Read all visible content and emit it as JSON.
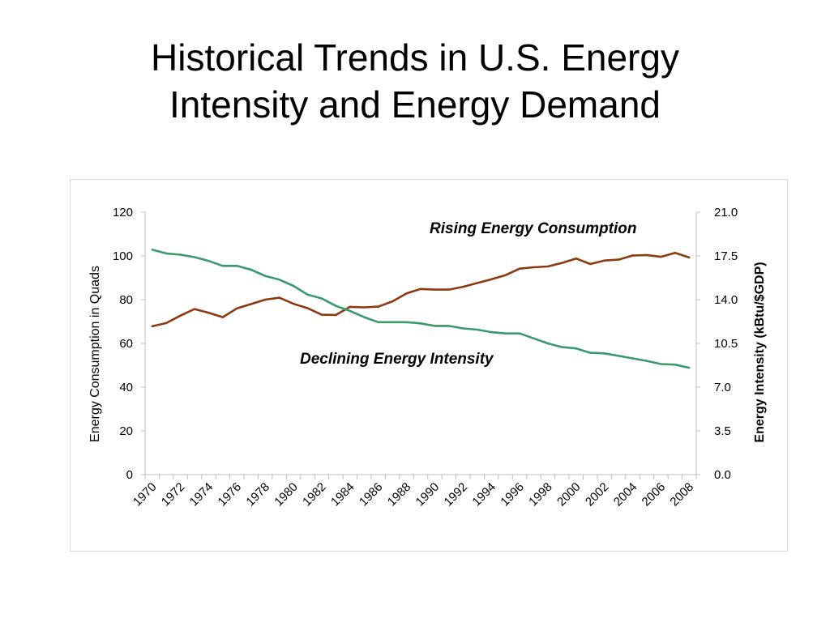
{
  "slide": {
    "title_line1": "Historical Trends in U.S. Energy",
    "title_line2": "Intensity and Energy Demand"
  },
  "chart_data": {
    "type": "line",
    "title": "",
    "xlabel": "",
    "ylabel": "Energy Consumption in Quads",
    "y2label": "Energy Intensity (kBtu/$GDP)",
    "ylim": [
      0,
      120
    ],
    "y2lim": [
      0,
      21
    ],
    "yticks": [
      "0",
      "20",
      "40",
      "60",
      "80",
      "100",
      "120"
    ],
    "y2ticks": [
      "0.0",
      "3.5",
      "7.0",
      "10.5",
      "14.0",
      "17.5",
      "21.0"
    ],
    "x": [
      1970,
      1971,
      1972,
      1973,
      1974,
      1975,
      1976,
      1977,
      1978,
      1979,
      1980,
      1981,
      1982,
      1983,
      1984,
      1985,
      1986,
      1987,
      1988,
      1989,
      1990,
      1991,
      1992,
      1993,
      1994,
      1995,
      1996,
      1997,
      1998,
      1999,
      2000,
      2001,
      2002,
      2003,
      2004,
      2005,
      2006,
      2007,
      2008
    ],
    "xtick_labels": [
      "1970",
      "1972",
      "1974",
      "1976",
      "1978",
      "1980",
      "1982",
      "1984",
      "1986",
      "1988",
      "1990",
      "1992",
      "1994",
      "1996",
      "1998",
      "2000",
      "2002",
      "2004",
      "2006",
      "2008"
    ],
    "grid": false,
    "legend": "none",
    "series": [
      {
        "axis": "left",
        "color": "#8b3a0f",
        "values": [
          67.8,
          69.3,
          72.7,
          75.7,
          74.0,
          72.0,
          76.0,
          78.0,
          80.0,
          80.9,
          78.1,
          76.1,
          73.1,
          73.0,
          76.7,
          76.5,
          76.8,
          79.2,
          82.9,
          84.9,
          84.6,
          84.6,
          85.9,
          87.6,
          89.3,
          91.2,
          94.2,
          94.8,
          95.2,
          96.8,
          98.8,
          96.3,
          97.9,
          98.3,
          100.2,
          100.4,
          99.6,
          101.4,
          99.3
        ]
      },
      {
        "axis": "right",
        "color": "#3a9a6c",
        "values": [
          18.0,
          17.7,
          17.6,
          17.4,
          17.1,
          16.7,
          16.7,
          16.4,
          15.9,
          15.6,
          15.1,
          14.4,
          14.1,
          13.5,
          13.1,
          12.6,
          12.2,
          12.2,
          12.2,
          12.1,
          11.9,
          11.9,
          11.7,
          11.6,
          11.4,
          11.3,
          11.3,
          10.9,
          10.5,
          10.2,
          10.1,
          9.75,
          9.7,
          9.5,
          9.3,
          9.1,
          8.85,
          8.8,
          8.55
        ]
      }
    ],
    "annotations": [
      {
        "text": "Rising Energy Consumption"
      },
      {
        "text": "Declining Energy Intensity"
      }
    ]
  }
}
